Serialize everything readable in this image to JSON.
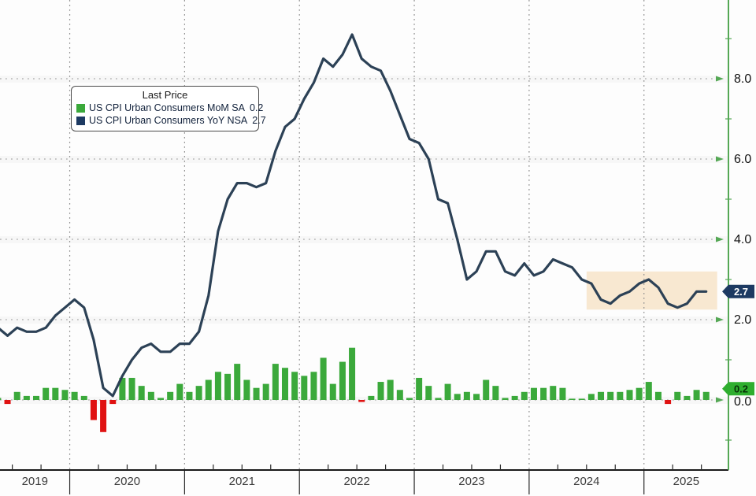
{
  "chart_data": {
    "type": "combo",
    "subtype": "bar+line",
    "legend": {
      "title": "Last Price",
      "position": "top-left",
      "series": [
        {
          "label": "US CPI Urban Consumers MoM SA",
          "value": "0.2",
          "color": "#3ba93b",
          "type": "bar"
        },
        {
          "label": "US CPI Urban Consumers YoY NSA",
          "value": "2.7",
          "color": "#1d3a62",
          "type": "line"
        }
      ]
    },
    "x": [
      "2019-05",
      "2019-06",
      "2019-07",
      "2019-08",
      "2019-09",
      "2019-10",
      "2019-11",
      "2019-12",
      "2020-01",
      "2020-02",
      "2020-03",
      "2020-04",
      "2020-05",
      "2020-06",
      "2020-07",
      "2020-08",
      "2020-09",
      "2020-10",
      "2020-11",
      "2020-12",
      "2021-01",
      "2021-02",
      "2021-03",
      "2021-04",
      "2021-05",
      "2021-06",
      "2021-07",
      "2021-08",
      "2021-09",
      "2021-10",
      "2021-11",
      "2021-12",
      "2022-01",
      "2022-02",
      "2022-03",
      "2022-04",
      "2022-05",
      "2022-06",
      "2022-07",
      "2022-08",
      "2022-09",
      "2022-10",
      "2022-11",
      "2022-12",
      "2023-01",
      "2023-02",
      "2023-03",
      "2023-04",
      "2023-05",
      "2023-06",
      "2023-07",
      "2023-08",
      "2023-09",
      "2023-10",
      "2023-11",
      "2023-12",
      "2024-01",
      "2024-02",
      "2024-03",
      "2024-04",
      "2024-05",
      "2024-06",
      "2024-07",
      "2024-08",
      "2024-09",
      "2024-10",
      "2024-11",
      "2024-12",
      "2025-01",
      "2025-02",
      "2025-03",
      "2025-04",
      "2025-05",
      "2025-06",
      "2025-07"
    ],
    "series": [
      {
        "name": "US CPI Urban Consumers MoM SA",
        "type": "bar",
        "color_positive": "#3ba93b",
        "color_negative": "#e01212",
        "values": [
          0.05,
          -0.1,
          0.2,
          0.1,
          0.1,
          0.3,
          0.3,
          0.25,
          0.2,
          0.1,
          -0.5,
          -0.8,
          -0.1,
          0.55,
          0.55,
          0.35,
          0.2,
          0.05,
          0.2,
          0.4,
          0.2,
          0.35,
          0.5,
          0.7,
          0.65,
          0.9,
          0.5,
          0.3,
          0.4,
          0.9,
          0.8,
          0.7,
          0.6,
          0.7,
          1.05,
          0.4,
          0.95,
          1.3,
          -0.05,
          0.1,
          0.45,
          0.5,
          0.25,
          0.05,
          0.55,
          0.35,
          0.05,
          0.4,
          0.15,
          0.2,
          0.15,
          0.5,
          0.35,
          0.05,
          0.1,
          0.2,
          0.3,
          0.3,
          0.35,
          0.3,
          0.0,
          0.0,
          0.15,
          0.2,
          0.2,
          0.2,
          0.25,
          0.3,
          0.45,
          0.2,
          -0.1,
          0.2,
          0.1,
          0.25,
          0.2
        ]
      },
      {
        "name": "US CPI Urban Consumers YoY NSA",
        "type": "line",
        "color": "#2c4156",
        "values": [
          1.8,
          1.6,
          1.8,
          1.7,
          1.7,
          1.8,
          2.1,
          2.3,
          2.5,
          2.3,
          1.5,
          0.3,
          0.1,
          0.6,
          1.0,
          1.3,
          1.4,
          1.2,
          1.2,
          1.4,
          1.4,
          1.7,
          2.6,
          4.2,
          5.0,
          5.4,
          5.4,
          5.3,
          5.4,
          6.2,
          6.8,
          7.0,
          7.5,
          7.9,
          8.5,
          8.3,
          8.6,
          9.1,
          8.5,
          8.3,
          8.2,
          7.7,
          7.1,
          6.5,
          6.4,
          6.0,
          5.0,
          4.9,
          4.0,
          3.0,
          3.2,
          3.7,
          3.7,
          3.2,
          3.1,
          3.4,
          3.1,
          3.2,
          3.5,
          3.4,
          3.3,
          3.0,
          2.9,
          2.5,
          2.4,
          2.6,
          2.7,
          2.9,
          3.0,
          2.8,
          2.4,
          2.3,
          2.4,
          2.7,
          2.7
        ]
      }
    ],
    "x_axis": {
      "year_labels": [
        "2019",
        "2020",
        "2021",
        "2022",
        "2023",
        "2024",
        "2025"
      ]
    },
    "y_axis": {
      "side": "right",
      "tick_values": [
        0.0,
        2.0,
        4.0,
        6.0,
        8.0
      ],
      "tick_labels": [
        "0.0",
        "2.0",
        "4.0",
        "6.0",
        "8.0"
      ],
      "minor_tick_values": [
        9.0,
        7.0,
        5.0,
        3.0,
        1.0,
        -1.0
      ],
      "axis_color": "#55a855",
      "grid": "dotted"
    },
    "last_price_tags": [
      {
        "value": "2.7",
        "numeric": 2.7,
        "bg": "#1d3a62",
        "text_color": "#ffffff",
        "series": "yoy"
      },
      {
        "value": "0.2",
        "numeric": 0.2,
        "bg": "#2fae2f",
        "text_color": "#073007",
        "series": "mom"
      }
    ],
    "highlight_band": {
      "start_month": "2024-07",
      "end_month": "2025-07",
      "y_top": 3.2,
      "y_bottom": 2.25,
      "color": "#f8e8d1"
    }
  },
  "colors": {
    "background": "#fdfdfd",
    "gridline": "#a8a8a8",
    "x_axis_line": "#1a1a1a",
    "y_axis_line": "#55a855",
    "year_label": "#3c3c3c",
    "y_label": "#111111"
  }
}
